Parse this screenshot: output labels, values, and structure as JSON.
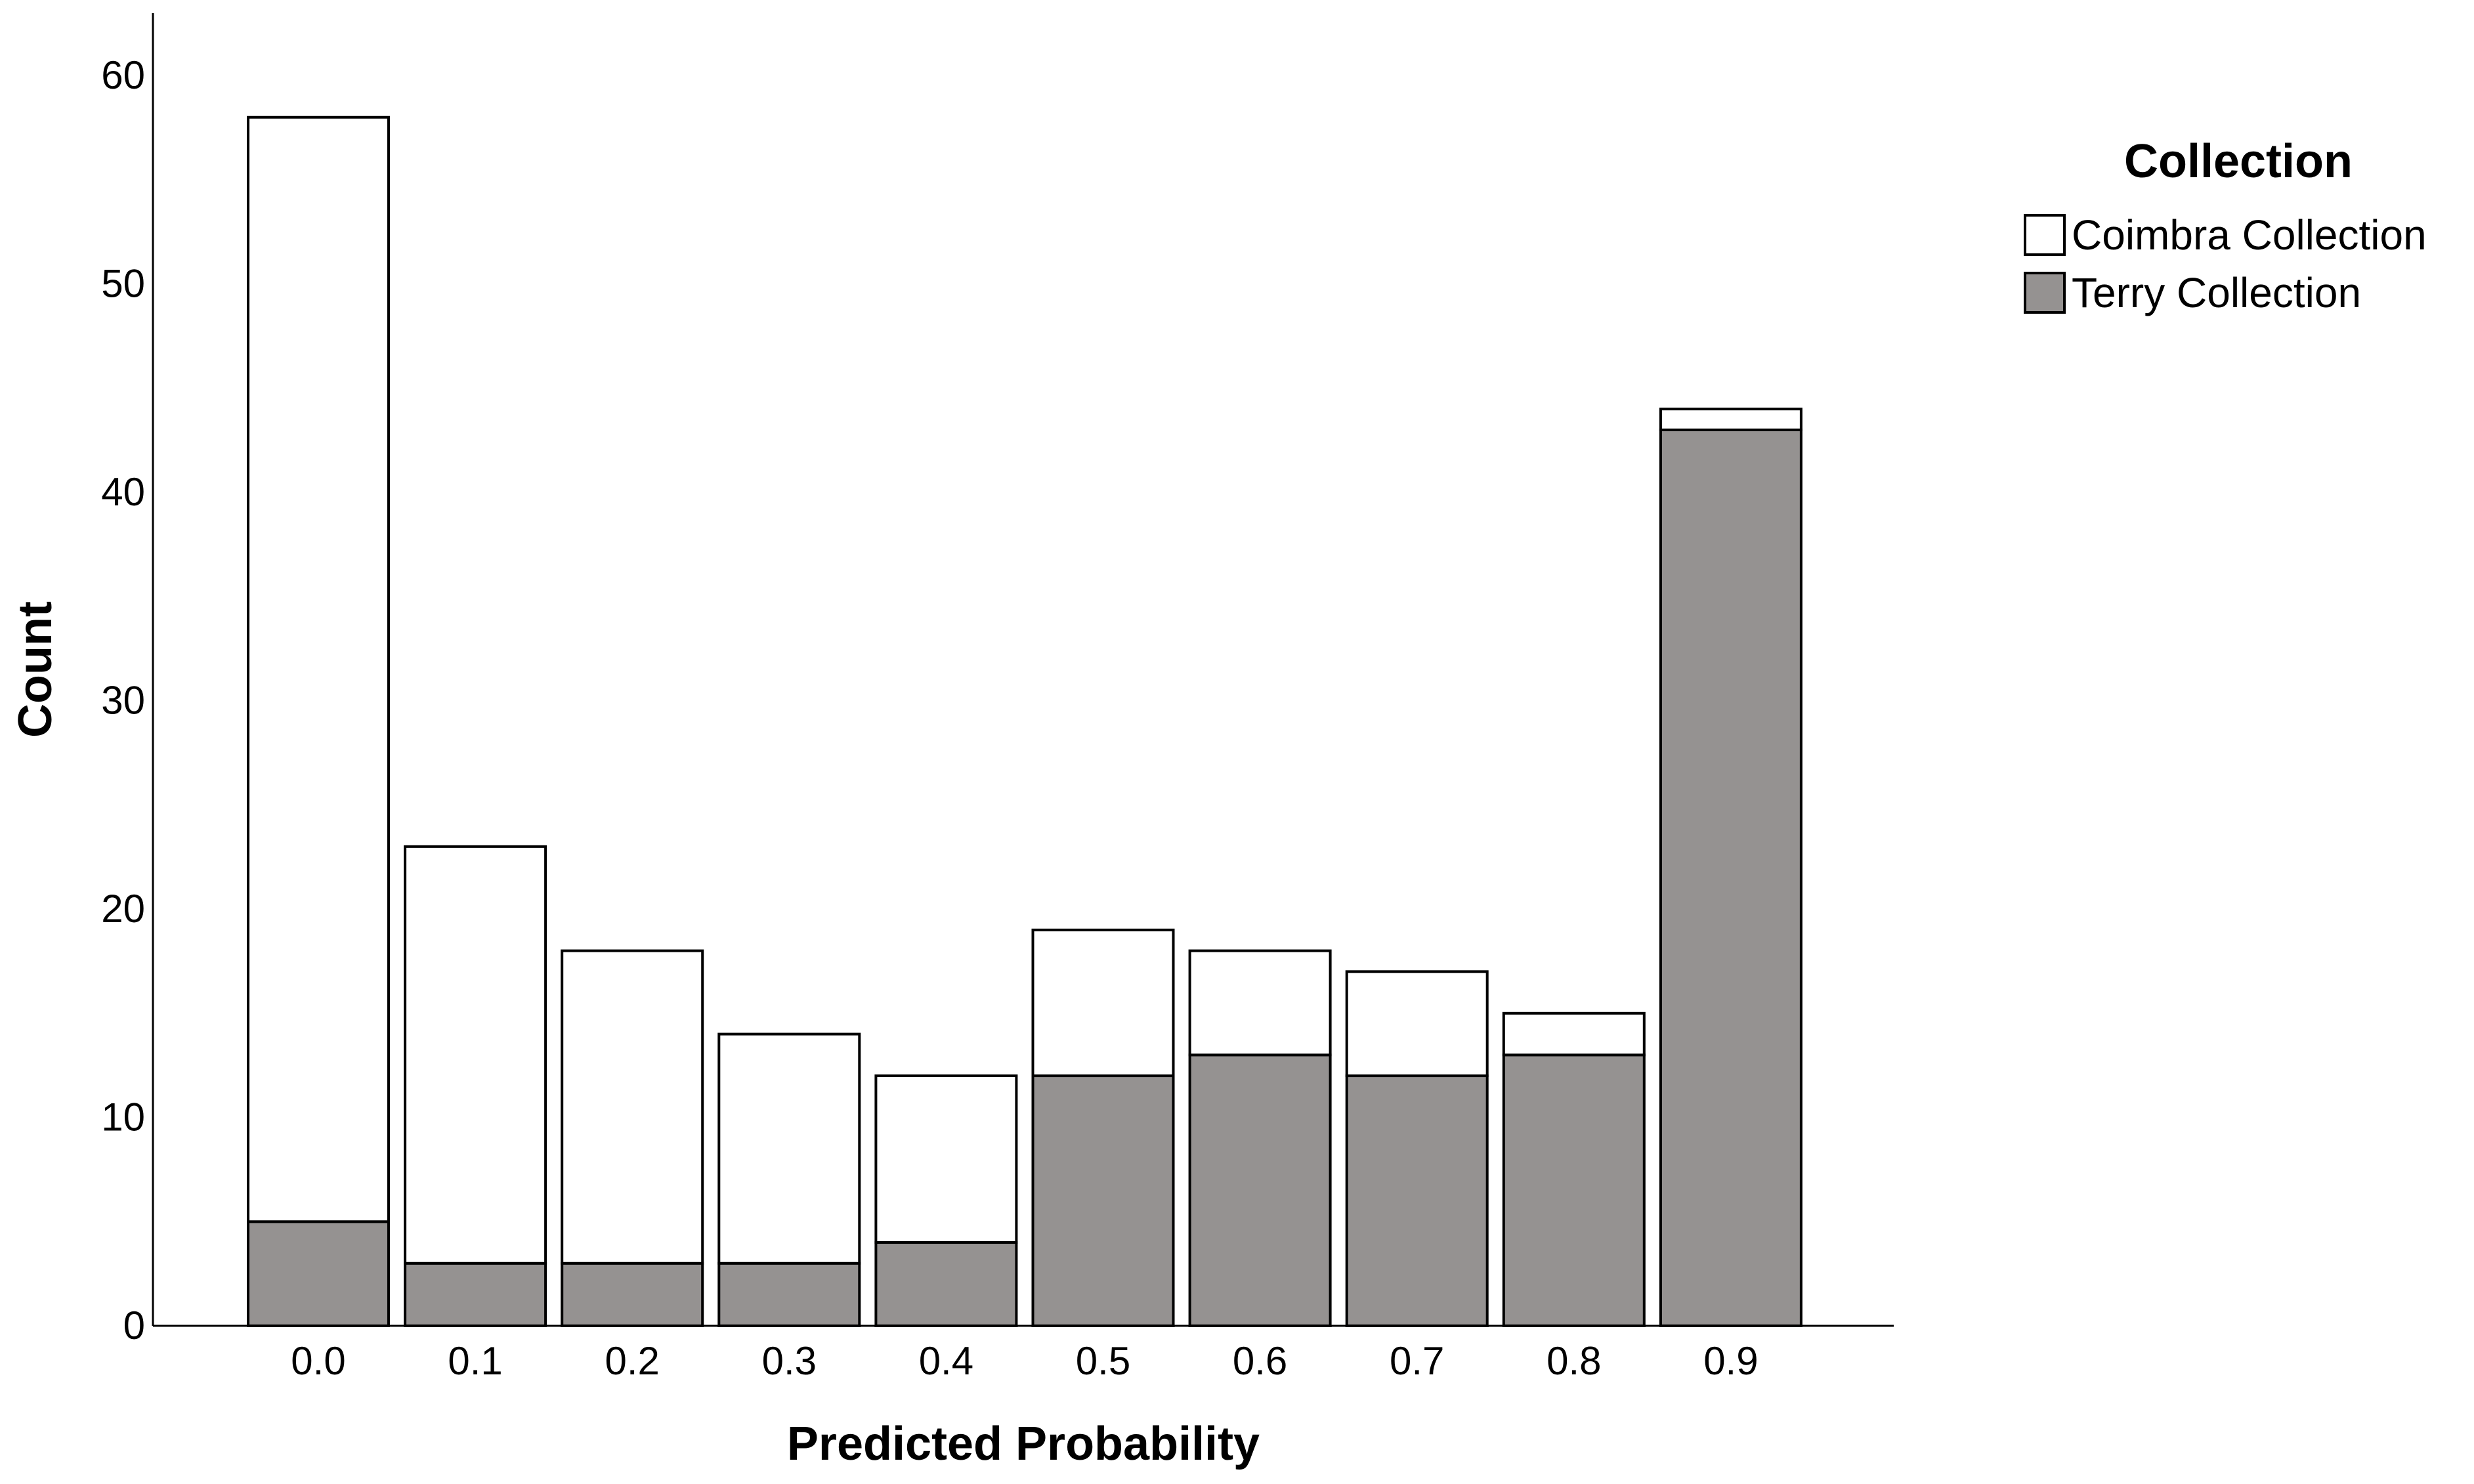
{
  "chart_data": {
    "type": "bar",
    "stacked": true,
    "categories": [
      "0.0",
      "0.1",
      "0.2",
      "0.3",
      "0.4",
      "0.5",
      "0.6",
      "0.7",
      "0.8",
      "0.9"
    ],
    "series": [
      {
        "name": "Terry Collection",
        "color": "#959291",
        "values": [
          5,
          3,
          3,
          3,
          4,
          12,
          13,
          12,
          13,
          43
        ]
      },
      {
        "name": "Coimbra Collection",
        "color": "#ffffff",
        "values": [
          53,
          20,
          15,
          11,
          8,
          7,
          5,
          5,
          2,
          1
        ]
      }
    ],
    "xlabel": "Predicted Probability",
    "ylabel": "Count",
    "ylim": [
      0,
      63
    ],
    "yticks": [
      "0",
      "10",
      "20",
      "30",
      "40",
      "50",
      "60"
    ],
    "grid": false,
    "legend": {
      "title": "Collection",
      "placement": "top-right",
      "entries": [
        "Coimbra Collection",
        "Terry Collection"
      ]
    }
  }
}
